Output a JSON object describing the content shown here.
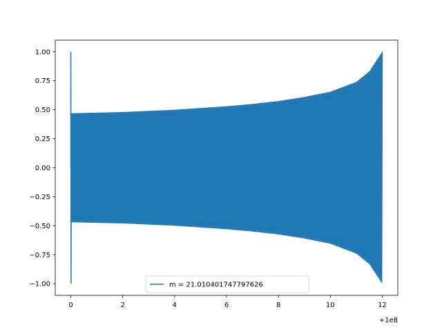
{
  "chart_data": {
    "type": "line",
    "title": "",
    "xlabel": "",
    "ylabel": "",
    "xlim": [
      -0.6,
      12.6
    ],
    "ylim": [
      -1.1,
      1.1
    ],
    "x_offset_label": "+1e8",
    "x_ticks": [
      0,
      2,
      4,
      6,
      8,
      10,
      12
    ],
    "x_tick_labels": [
      "0",
      "2",
      "4",
      "6",
      "8",
      "10",
      "12"
    ],
    "y_ticks": [
      -1.0,
      -0.75,
      -0.5,
      -0.25,
      0.0,
      0.25,
      0.5,
      0.75,
      1.0
    ],
    "y_tick_labels": [
      "−1.00",
      "−0.75",
      "−0.50",
      "−0.25",
      "0.00",
      "0.25",
      "0.50",
      "0.75",
      "1.00"
    ],
    "grid": false,
    "legend_position": "lower-center",
    "series": [
      {
        "name": "m = 21.010401747797626",
        "color": "#1f77b4",
        "x_range": [
          0,
          12
        ],
        "initial_spike": [
          1.0,
          -1.0
        ],
        "envelope": {
          "x": [
            0.0,
            1,
            2,
            3,
            4,
            5,
            6,
            7,
            8,
            9,
            10,
            11,
            11.5,
            12
          ],
          "amplitude": [
            0.47,
            0.475,
            0.48,
            0.49,
            0.5,
            0.515,
            0.53,
            0.55,
            0.575,
            0.61,
            0.655,
            0.74,
            0.83,
            1.0
          ]
        },
        "approx_cycles": 290
      }
    ]
  }
}
